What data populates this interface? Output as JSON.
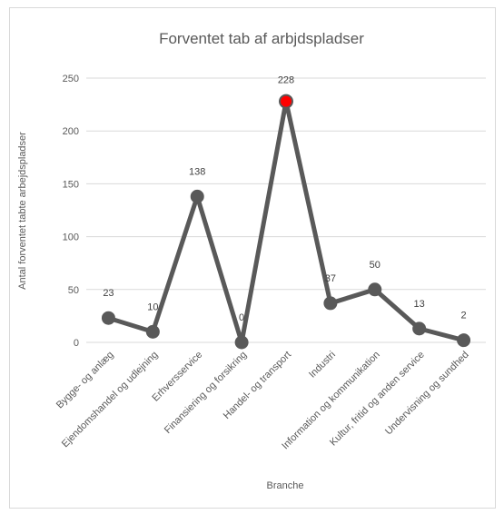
{
  "chart_data": {
    "type": "line",
    "title": "Forventet tab af arbjdspladser",
    "xlabel": "Branche",
    "ylabel": "Antal forventet tabte arbejdspladser",
    "categories": [
      "Bygge- og anlæg",
      "Ejendomshandel og udlejning",
      "Erhversservice",
      "Finansiering og forsikring",
      "Handel- og transport",
      "Industri",
      "Information og kommunikation",
      "Kultur, fritid og anden service",
      "Undervisning og sundhed"
    ],
    "series": [
      {
        "values": [
          23,
          10,
          138,
          0,
          228,
          37,
          50,
          13,
          2
        ]
      }
    ],
    "data_labels": [
      "23",
      "10",
      "138",
      "0",
      "228",
      "37",
      "50",
      "13",
      "2"
    ],
    "ylim": [
      0,
      250
    ],
    "yticks": [
      "0",
      "50",
      "100",
      "150",
      "200",
      "250"
    ],
    "grid": true,
    "legend": "none",
    "colors": {
      "line": "#595959",
      "marker": "#595959",
      "highlight_marker": "#ff0000",
      "grid": "#d9d9d9",
      "text": "#595959"
    },
    "highlight_index": 4
  }
}
